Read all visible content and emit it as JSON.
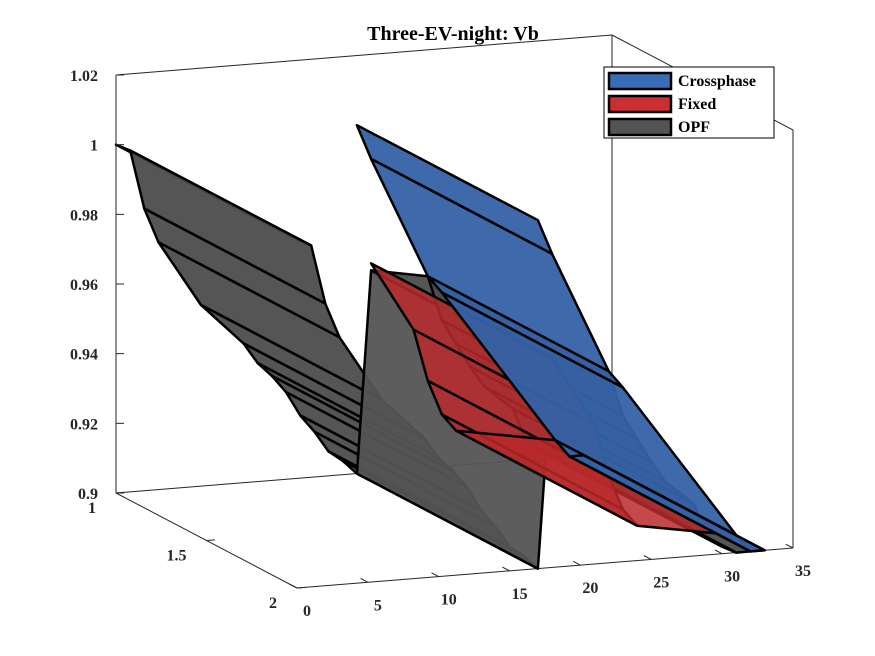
{
  "chart_data": {
    "type": "surface",
    "title": "Three-EV-night: Vb",
    "xlabel": "",
    "ylabel": "",
    "zlabel": "",
    "x_ticks": [
      0,
      5,
      10,
      15,
      20,
      25,
      30,
      35
    ],
    "y_ticks": [
      1,
      1.5,
      2
    ],
    "z_ticks": [
      0.9,
      0.92,
      0.94,
      0.96,
      0.98,
      1,
      1.02
    ],
    "xlim": [
      0,
      35
    ],
    "ylim": [
      1,
      2
    ],
    "zlim": [
      0.9,
      1.02
    ],
    "grid": false,
    "legend_position": "top-right",
    "series": [
      {
        "name": "Crossphase",
        "color": "#3a6db8",
        "y_range": [
          1,
          2
        ],
        "x": [
          17,
          18,
          22,
          23,
          31,
          32,
          33
        ],
        "z": [
          1.0,
          0.99,
          0.955,
          0.95,
          0.905,
          0.9,
          0.9
        ]
      },
      {
        "name": "Fixed",
        "color": "#cc2d30",
        "y_range": [
          1,
          2
        ],
        "x": [
          18,
          21,
          22,
          23,
          24,
          31,
          32
        ],
        "z": [
          0.96,
          0.94,
          0.925,
          0.915,
          0.91,
          0.905,
          0.9
        ]
      },
      {
        "name": "OPF",
        "color": "#545454",
        "y_range": [
          1,
          2
        ],
        "x": [
          0,
          1,
          2,
          3,
          6,
          9,
          10,
          11,
          12,
          13,
          14,
          15,
          16,
          17,
          18,
          22,
          23,
          24,
          25,
          26,
          28,
          29,
          30,
          31,
          32,
          33
        ],
        "z": [
          1.0,
          0.998,
          0.981,
          0.971,
          0.952,
          0.94,
          0.934,
          0.93,
          0.925,
          0.918,
          0.913,
          0.907,
          0.904,
          0.9,
          0.958,
          0.955,
          0.942,
          0.935,
          0.928,
          0.922,
          0.915,
          0.905,
          0.902,
          0.9,
          0.9,
          0.9
        ]
      }
    ]
  }
}
